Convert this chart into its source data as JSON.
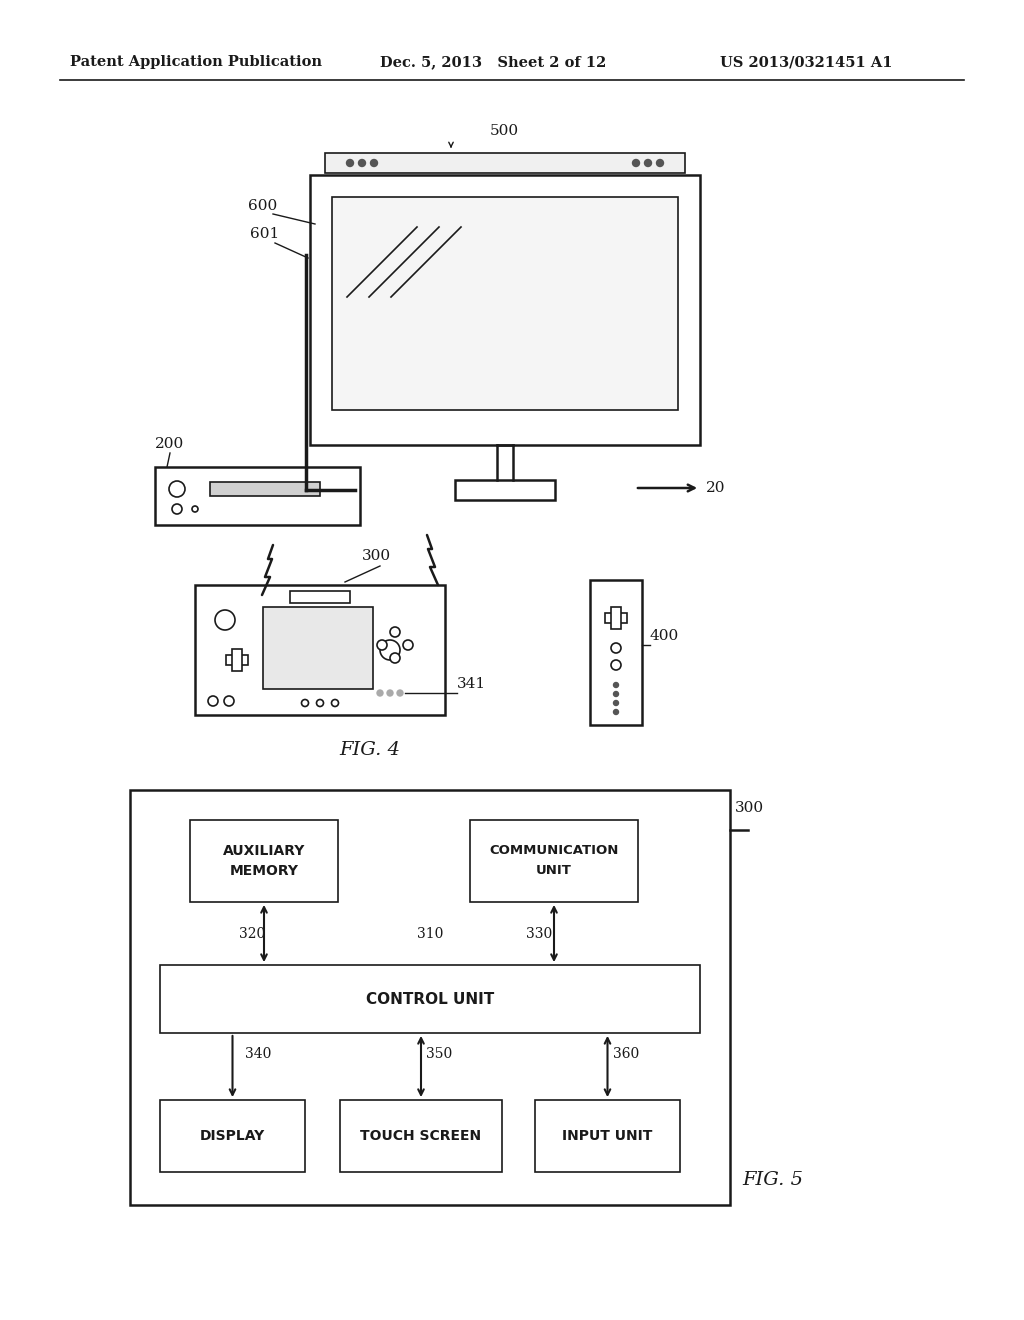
{
  "bg_color": "#ffffff",
  "header_left": "Patent Application Publication",
  "header_center": "Dec. 5, 2013   Sheet 2 of 12",
  "header_right": "US 2013/0321451 A1",
  "fig4_label": "FIG. 4",
  "fig5_label": "FIG. 5",
  "label_color": "#1a1a1a",
  "line_color": "#1a1a1a"
}
